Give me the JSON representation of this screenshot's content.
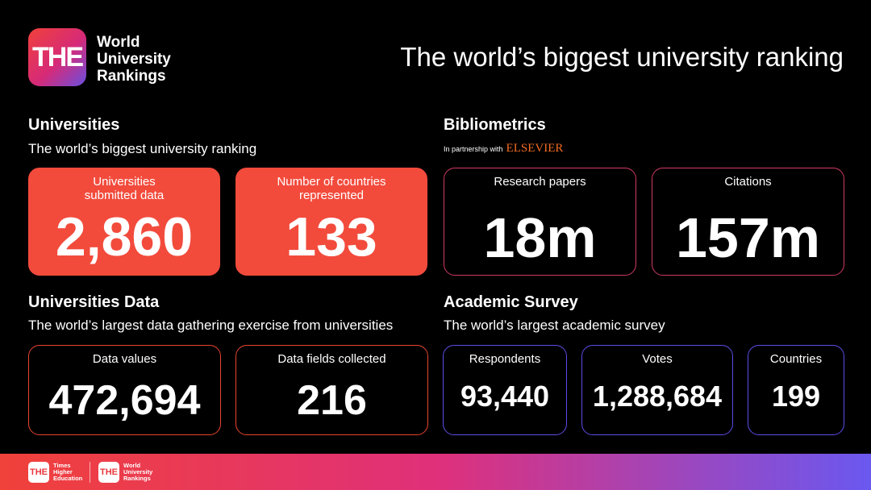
{
  "header": {
    "logo": "THE",
    "brand": [
      "World",
      "University",
      "Rankings"
    ],
    "title": "The world’s biggest university ranking"
  },
  "sections": [
    {
      "title": "Universities",
      "subtitle": "The world’s biggest university ranking",
      "cards": [
        {
          "label": "Universities submitted data",
          "value": "2,860"
        },
        {
          "label": "Number of countries represented",
          "value": "133"
        }
      ]
    },
    {
      "title": "Bibliometrics",
      "partner_text": "In partnership with",
      "partner": "ELSEVIER",
      "cards": [
        {
          "label": "Research papers",
          "value": "18m"
        },
        {
          "label": "Citations",
          "value": "157m"
        }
      ]
    },
    {
      "title": "Universities Data",
      "subtitle": "The world’s largest data gathering exercise from universities",
      "cards": [
        {
          "label": "Data values",
          "value": "472,694"
        },
        {
          "label": "Data fields collected",
          "value": "216"
        }
      ]
    },
    {
      "title": "Academic Survey",
      "subtitle": "The world’s largest academic survey",
      "cards": [
        {
          "label": "Respondents",
          "value": "93,440"
        },
        {
          "label": "Votes",
          "value": "1,288,684"
        },
        {
          "label": "Countries",
          "value": "199"
        }
      ]
    }
  ],
  "footer": {
    "logos": [
      {
        "mark": "THE",
        "lines": [
          "Times",
          "Higher",
          "Education"
        ]
      },
      {
        "mark": "THE",
        "lines": [
          "World",
          "University",
          "Rankings"
        ]
      }
    ]
  }
}
